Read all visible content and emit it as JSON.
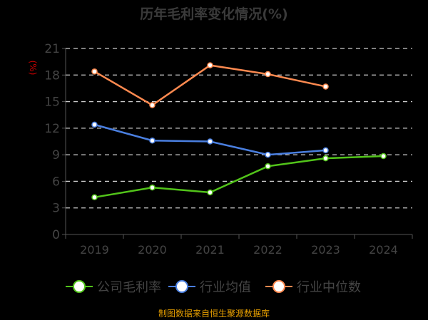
{
  "chart_data": {
    "type": "line",
    "title": "历年毛利率变化情况(%)",
    "ylabel": "(%)",
    "xlabel": "",
    "categories": [
      "2019",
      "2020",
      "2021",
      "2022",
      "2023",
      "2024"
    ],
    "ylim": [
      0,
      21
    ],
    "yticks": [
      0,
      3,
      6,
      9,
      12,
      15,
      18,
      21
    ],
    "grid": true,
    "legend_position": "bottom",
    "series": [
      {
        "name": "公司毛利率",
        "color": "#52c41a",
        "values": [
          4.2,
          5.3,
          4.75,
          7.7,
          8.6,
          8.85
        ]
      },
      {
        "name": "行业均值",
        "color": "#4a7fe0",
        "values": [
          12.4,
          10.6,
          10.5,
          9.0,
          9.5,
          null
        ]
      },
      {
        "name": "行业中位数",
        "color": "#ff8a50",
        "values": [
          18.4,
          14.6,
          19.1,
          18.1,
          16.7,
          null
        ]
      }
    ]
  },
  "footer": {
    "source": "制图数据来自恒生聚源数据库"
  },
  "colors": {
    "title": "#3a3a3a",
    "axis_text": "#444444",
    "ylabel": "#cc0000",
    "source": "#e8a000",
    "grid": "#cccccc"
  }
}
